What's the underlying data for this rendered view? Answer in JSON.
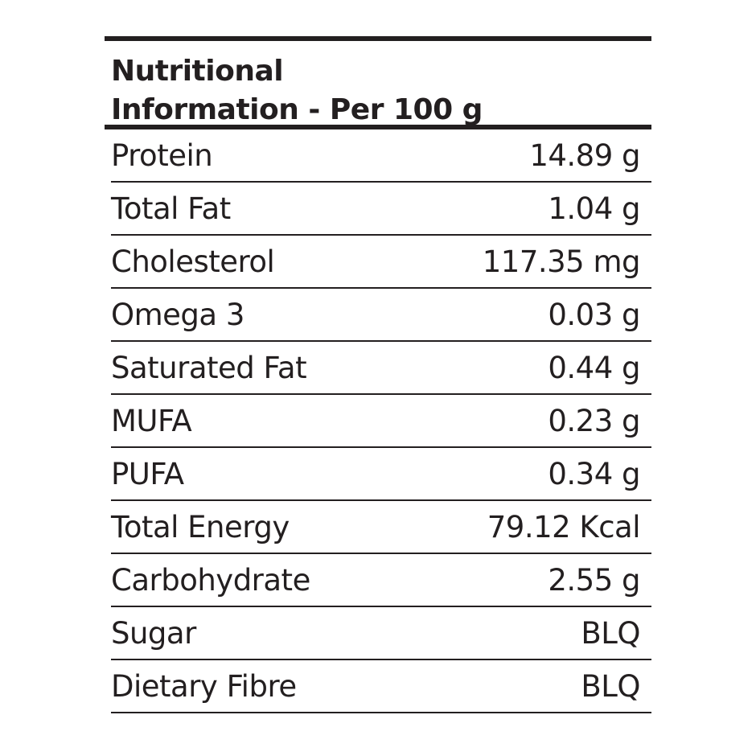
{
  "title_line1": "Nutritional",
  "title_line2": "Information - Per 100 g",
  "rows": [
    {
      "label": "Protein",
      "value": "14.89 g"
    },
    {
      "label": "Total Fat",
      "value": "1.04 g"
    },
    {
      "label": "Cholesterol",
      "value": "117.35 mg"
    },
    {
      "label": "Omega 3",
      "value": "0.03 g"
    },
    {
      "label": "Saturated Fat",
      "value": "0.44 g"
    },
    {
      "label": "MUFA",
      "value": "0.23 g"
    },
    {
      "label": "PUFA",
      "value": "0.34 g"
    },
    {
      "label": "Total Energy",
      "value": "79.12 Kcal"
    },
    {
      "label": "Carbohydrate",
      "value": "2.55 g"
    },
    {
      "label": "Sugar",
      "value": "BLQ"
    },
    {
      "label": "Dietary Fibre",
      "value": "BLQ"
    }
  ]
}
